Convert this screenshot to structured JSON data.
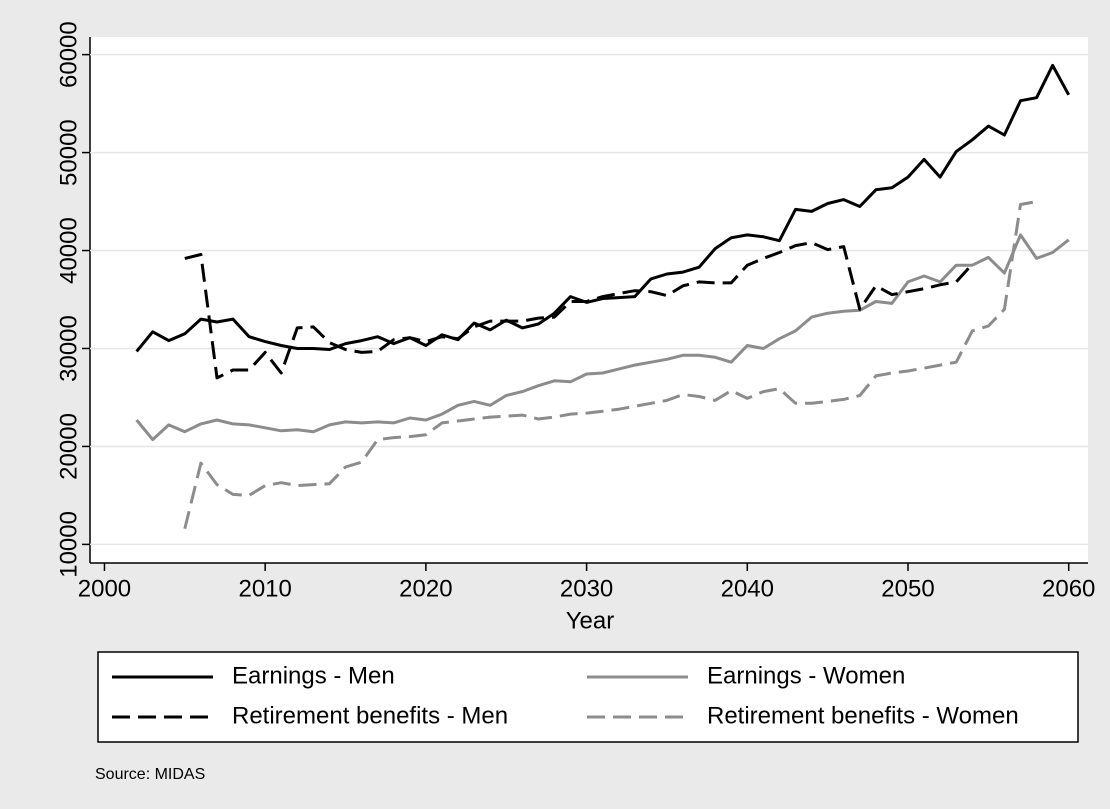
{
  "chart_data": {
    "type": "line",
    "x": [
      2002,
      2003,
      2004,
      2005,
      2006,
      2007,
      2008,
      2009,
      2010,
      2011,
      2012,
      2013,
      2014,
      2015,
      2016,
      2017,
      2018,
      2019,
      2020,
      2021,
      2022,
      2023,
      2024,
      2025,
      2026,
      2027,
      2028,
      2029,
      2030,
      2031,
      2032,
      2033,
      2034,
      2035,
      2036,
      2037,
      2038,
      2039,
      2040,
      2041,
      2042,
      2043,
      2044,
      2045,
      2046,
      2047,
      2048,
      2049,
      2050,
      2051,
      2052,
      2053,
      2054,
      2055,
      2056,
      2057,
      2058,
      2059,
      2060
    ],
    "series": [
      {
        "name": "Earnings - Men",
        "color": "#000000",
        "dashed": false,
        "values": [
          29700,
          31700,
          30800,
          31500,
          33000,
          32700,
          33000,
          31200,
          30700,
          30300,
          30000,
          30000,
          29900,
          30500,
          30800,
          31200,
          30500,
          31100,
          30300,
          31400,
          30900,
          32600,
          31900,
          32900,
          32100,
          32500,
          33600,
          35300,
          34700,
          35100,
          35200,
          35300,
          37100,
          37600,
          37800,
          38300,
          40200,
          41300,
          41600,
          41400,
          41000,
          44200,
          44000,
          44800,
          45200,
          44500,
          46200,
          46400,
          47500,
          49300,
          47500,
          50100,
          51300,
          52700,
          51800,
          55300,
          55600,
          58900,
          55900
        ]
      },
      {
        "name": "Earnings - Women",
        "color": "#8c8c8c",
        "dashed": false,
        "values": [
          22700,
          20700,
          22200,
          21500,
          22300,
          22700,
          22300,
          22200,
          21900,
          21600,
          21700,
          21500,
          22200,
          22500,
          22400,
          22500,
          22400,
          22900,
          22700,
          23300,
          24200,
          24600,
          24200,
          25200,
          25600,
          26200,
          26700,
          26600,
          27400,
          27500,
          27900,
          28300,
          28600,
          28900,
          29300,
          29300,
          29100,
          28600,
          30300,
          30000,
          31000,
          31800,
          33200,
          33600,
          33800,
          33900,
          34800,
          34600,
          36800,
          37400,
          36800,
          38500,
          38500,
          39300,
          37700,
          41600,
          39200,
          39800,
          41100
        ]
      },
      {
        "name": "Retirement benefits - Men",
        "color": "#000000",
        "dashed": true,
        "values": [
          null,
          null,
          null,
          39200,
          39600,
          27000,
          27800,
          27800,
          29600,
          27500,
          32100,
          32200,
          30600,
          29900,
          29600,
          29700,
          30900,
          31100,
          30700,
          31200,
          31000,
          32200,
          32800,
          32800,
          32800,
          33100,
          33200,
          34800,
          34800,
          35300,
          35600,
          35900,
          35800,
          35400,
          36400,
          36800,
          36700,
          36700,
          38500,
          39200,
          39800,
          40500,
          40800,
          40100,
          40400,
          34000,
          36400,
          35500,
          35800,
          36100,
          36500,
          36800,
          38600,
          null,
          null,
          null,
          null,
          null,
          null
        ]
      },
      {
        "name": "Retirement benefits - Women",
        "color": "#8c8c8c",
        "dashed": true,
        "values": [
          null,
          null,
          null,
          11600,
          18300,
          16100,
          15100,
          15000,
          16000,
          16300,
          16000,
          16100,
          16200,
          17900,
          18400,
          20700,
          20900,
          21000,
          21200,
          22400,
          22600,
          22800,
          23000,
          23100,
          23200,
          22800,
          23000,
          23300,
          23400,
          23600,
          23800,
          24100,
          24400,
          24700,
          25300,
          25100,
          24700,
          25700,
          24900,
          25600,
          25900,
          24400,
          24400,
          24600,
          24800,
          25200,
          27200,
          27500,
          27700,
          28000,
          28300,
          28600,
          31800,
          32300,
          34000,
          44700,
          45000,
          null,
          null
        ]
      }
    ],
    "x_label": "Year",
    "xlim": [
      1999.1,
      2061.2
    ],
    "xticks": [
      2000,
      2010,
      2020,
      2030,
      2040,
      2050,
      2060
    ],
    "ylim": [
      8100,
      61800
    ],
    "yticks": [
      10000,
      20000,
      30000,
      40000,
      50000,
      60000
    ],
    "grid": true,
    "note": "Source: MIDAS"
  }
}
